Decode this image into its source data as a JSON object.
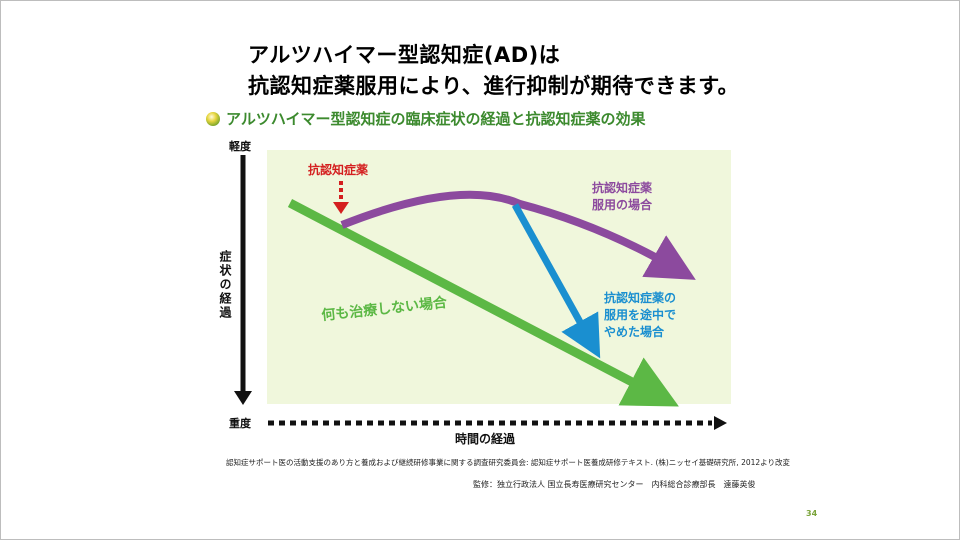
{
  "title": {
    "line1": "アルツハイマー型認知症(AD)は",
    "line2": "抗認知症薬服用により、進行抑制が期待できます。"
  },
  "subtitle": "アルツハイマー型認知症の臨床症状の経過と抗認知症薬の効果",
  "diagram": {
    "y_axis": {
      "top_label": "軽度",
      "bottom_label": "重度",
      "axis_title": "症状の経過"
    },
    "x_axis": {
      "axis_title": "時間の経過"
    },
    "annotations": {
      "drug_start": "抗認知症薬",
      "taking_drug": [
        "抗認知症薬",
        "服用の場合"
      ],
      "stopped_drug": [
        "抗認知症薬の",
        "服用を途中で",
        "やめた場合"
      ],
      "no_treatment": "何も治療しない場合"
    },
    "colors": {
      "background": "#f0f7dc",
      "no_treatment": "#5cb845",
      "taking_drug": "#8c4a9e",
      "stopped_drug": "#1a8fd0",
      "drug_start": "#d41f1f",
      "axis": "#111111"
    }
  },
  "source_note": "認知症サポート医の活動支援のあり方と養成および継続研修事業に関する調査研究委員会: 認知症サポート医養成研修テキスト. (株)ニッセイ基礎研究所, 2012より改変",
  "supervision": "監修：独立行政法人 国立長寿医療研究センター　内科総合診療部長　遠藤英俊",
  "page_number": "34"
}
